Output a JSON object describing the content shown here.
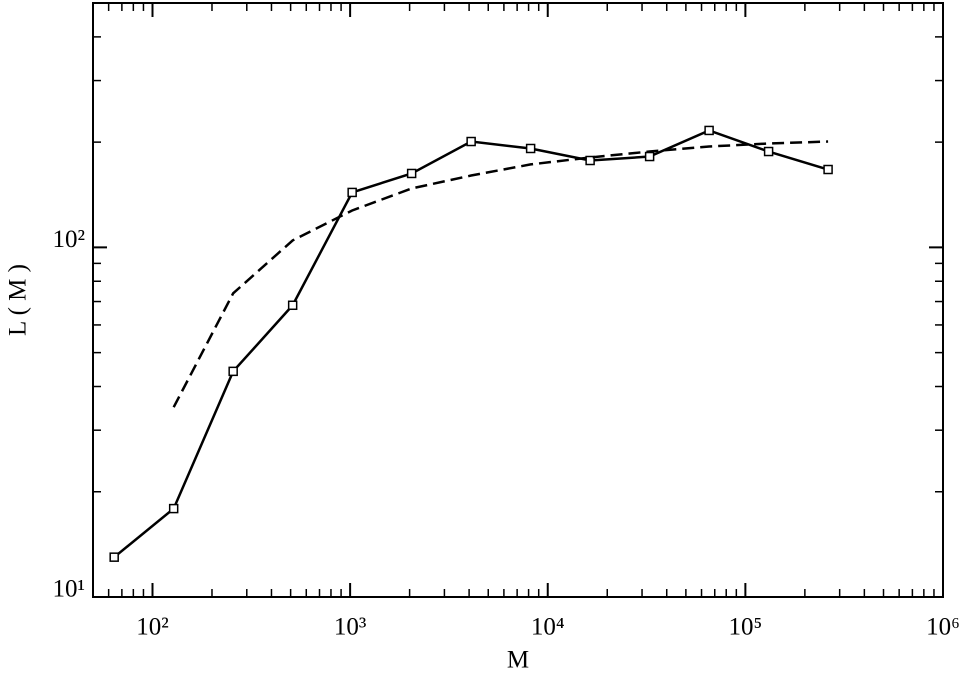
{
  "chart_data": {
    "type": "line",
    "x_label": "M",
    "y_label": "L ( M )",
    "x_scale": "log",
    "y_scale": "log",
    "xlim": [
      50,
      1000000
    ],
    "ylim": [
      10,
      500
    ],
    "xticks": [
      {
        "value": 100,
        "label": "10²"
      },
      {
        "value": 1000,
        "label": "10³"
      },
      {
        "value": 10000,
        "label": "10⁴"
      },
      {
        "value": 100000,
        "label": "10⁵"
      },
      {
        "value": 1000000,
        "label": "10⁶"
      }
    ],
    "yticks": [
      {
        "value": 10,
        "label": "10¹"
      },
      {
        "value": 100,
        "label": "10²"
      }
    ],
    "x": [
      64,
      128,
      256,
      512,
      1024,
      2048,
      4096,
      8192,
      16384,
      32768,
      65536,
      131072,
      262144
    ],
    "series": [
      {
        "color": "#000000",
        "line_style": "solid",
        "marker": "square",
        "values": [
          13.0,
          17.9,
          44.2,
          68.3,
          143.6,
          162.7,
          200.8,
          191.8,
          177.2,
          181.9,
          216,
          188,
          167
        ]
      },
      {
        "color": "#000000",
        "line_style": "dashed",
        "marker": "none",
        "values": [
          null,
          34.9,
          73.9,
          104.7,
          127.5,
          147.4,
          160.5,
          172.7,
          180.8,
          188,
          194.3,
          198.2,
          200.8
        ]
      }
    ]
  }
}
